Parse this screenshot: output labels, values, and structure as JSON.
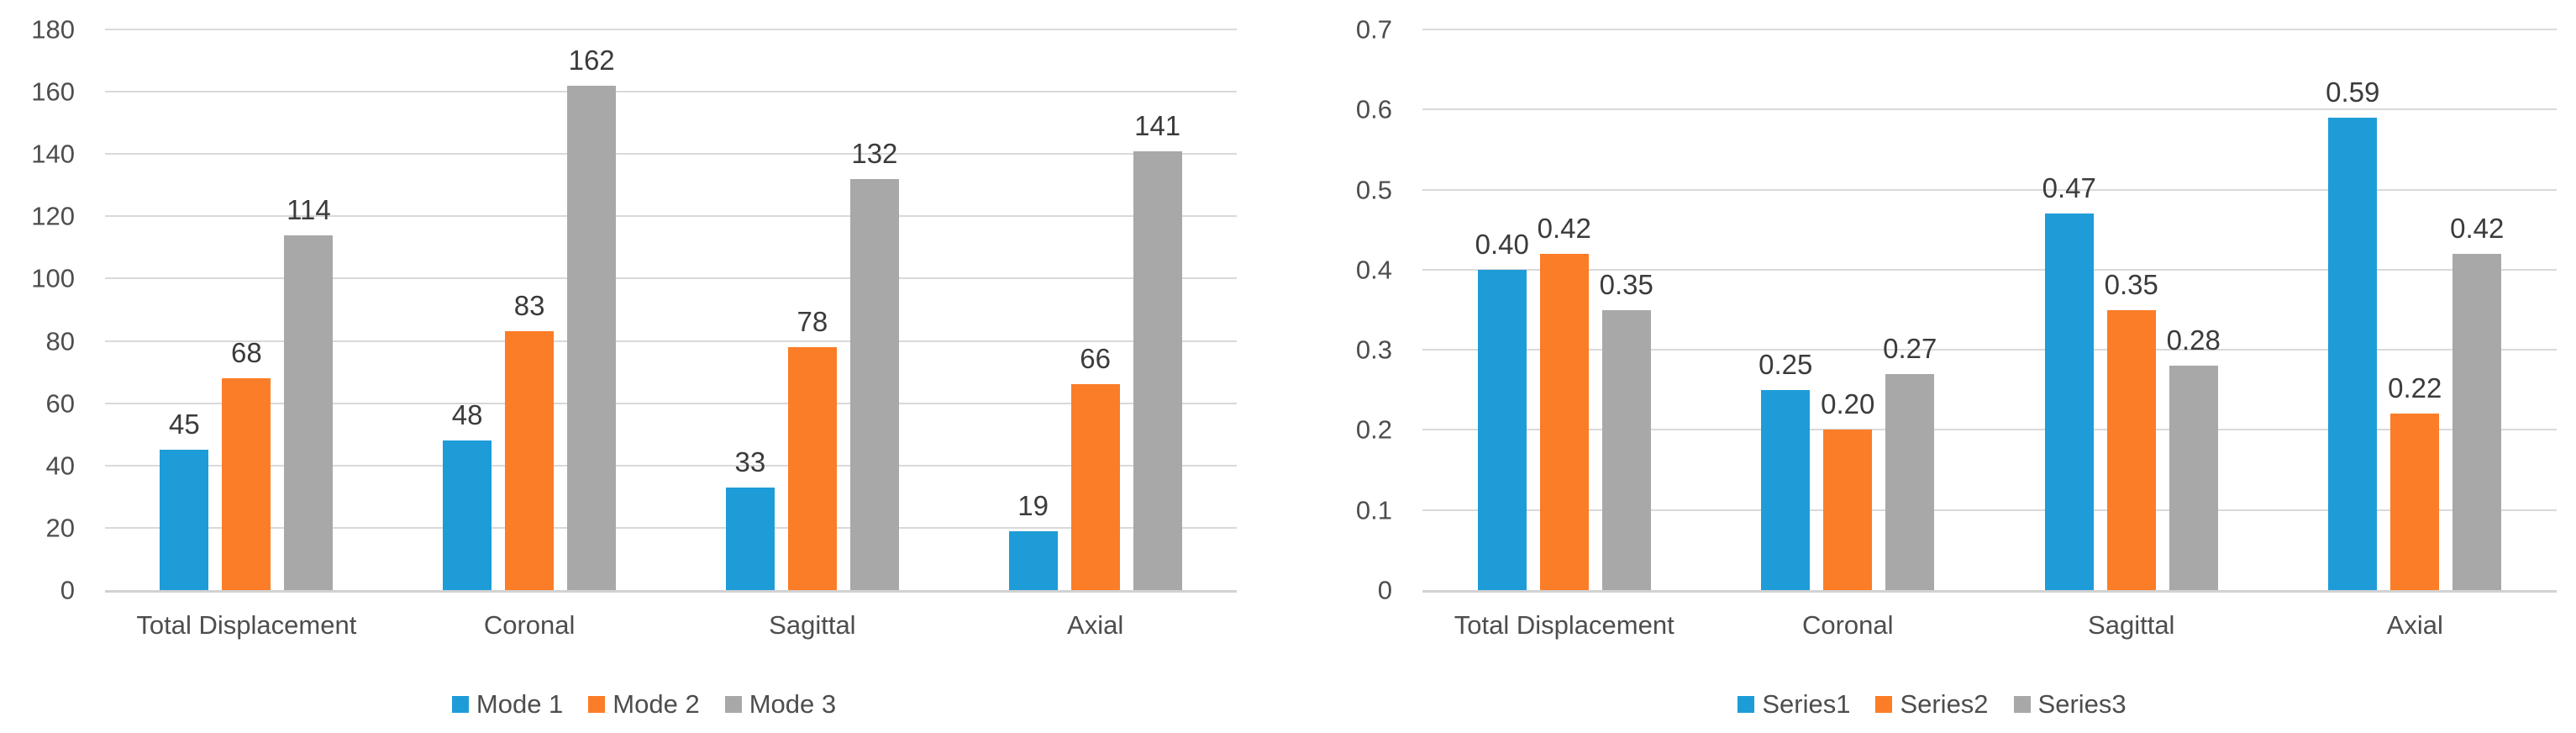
{
  "figure": {
    "background": "#ffffff",
    "palette": {
      "series_blue": "#1E9CD8",
      "series_orange": "#FB7D27",
      "series_gray": "#A8A8A8",
      "gridline": "#D9D9D9",
      "axis_line": "#D2D2D2",
      "axis_text": "#4D4D4D",
      "data_label_text": "#3B3B3B"
    }
  },
  "chart_data": [
    {
      "type": "bar",
      "title": "",
      "xlabel": "",
      "ylabel": "",
      "categories": [
        "Total Displacement",
        "Coronal",
        "Sagittal",
        "Axial"
      ],
      "series": [
        {
          "name": "Mode 1",
          "color": "#1E9CD8",
          "values": [
            45,
            48,
            33,
            19
          ],
          "labels": [
            "45",
            "48",
            "33",
            "19"
          ]
        },
        {
          "name": "Mode 2",
          "color": "#FB7D27",
          "values": [
            68,
            83,
            78,
            66
          ],
          "labels": [
            "68",
            "83",
            "78",
            "66"
          ]
        },
        {
          "name": "Mode 3",
          "color": "#A8A8A8",
          "values": [
            114,
            162,
            132,
            141
          ],
          "labels": [
            "114",
            "162",
            "132",
            "141"
          ]
        }
      ],
      "ylim": [
        0,
        180
      ],
      "y_tick_step": 20,
      "y_tick_labels": [
        "180",
        "160",
        "140",
        "120",
        "100",
        "80",
        "60",
        "40",
        "20",
        "0"
      ],
      "grid": true,
      "legend_position": "bottom",
      "data_labels": "outside-end"
    },
    {
      "type": "bar",
      "title": "",
      "xlabel": "",
      "ylabel": "",
      "categories": [
        "Total Displacement",
        "Coronal",
        "Sagittal",
        "Axial"
      ],
      "series": [
        {
          "name": "Series1",
          "color": "#1E9CD8",
          "values": [
            0.4,
            0.25,
            0.47,
            0.59
          ],
          "labels": [
            "0.40",
            "0.25",
            "0.47",
            "0.59"
          ]
        },
        {
          "name": "Series2",
          "color": "#FB7D27",
          "values": [
            0.42,
            0.2,
            0.35,
            0.22
          ],
          "labels": [
            "0.42",
            "0.20",
            "0.35",
            "0.22"
          ]
        },
        {
          "name": "Series3",
          "color": "#A8A8A8",
          "values": [
            0.35,
            0.27,
            0.28,
            0.42
          ],
          "labels": [
            "0.35",
            "0.27",
            "0.28",
            "0.42"
          ]
        }
      ],
      "ylim": [
        0,
        0.7
      ],
      "y_tick_step": 0.1,
      "y_tick_labels": [
        "0.7",
        "0.6",
        "0.5",
        "0.4",
        "0.3",
        "0.2",
        "0.1",
        "0"
      ],
      "grid": true,
      "legend_position": "bottom",
      "data_labels": "outside-end"
    }
  ]
}
